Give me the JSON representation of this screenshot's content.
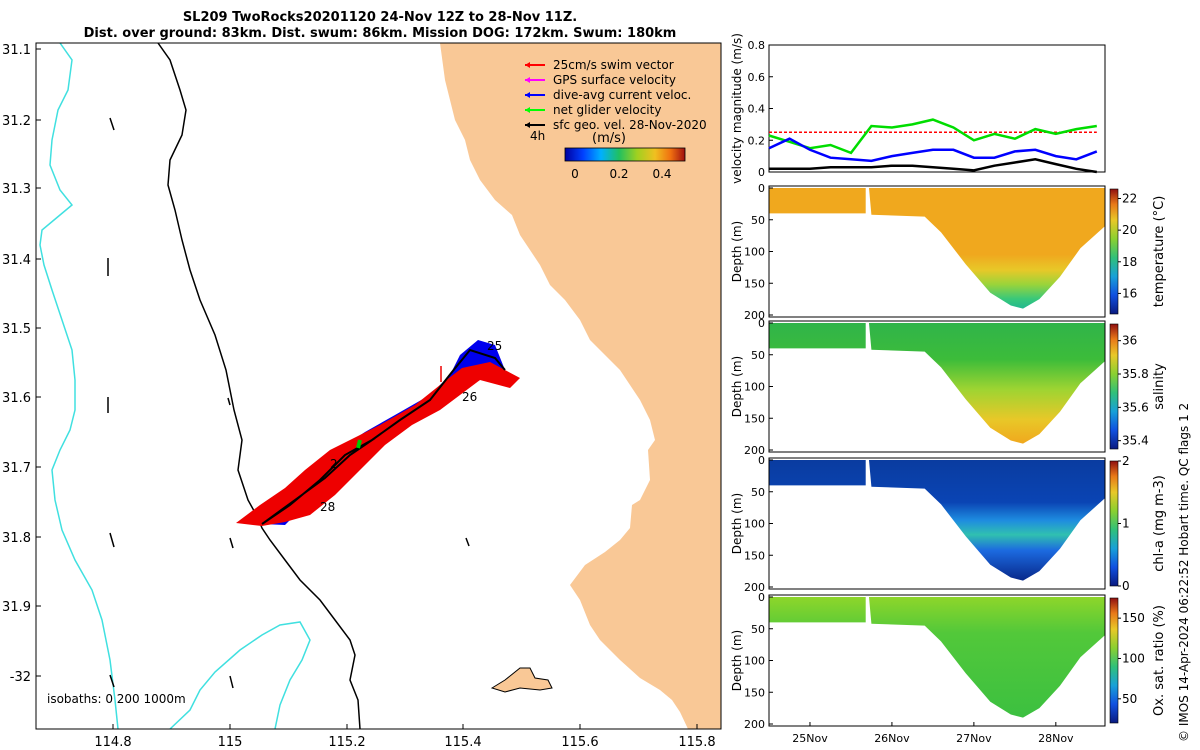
{
  "header": {
    "line1": "SL209 TwoRocks20201120 24-Nov 12Z to 28-Nov 11Z.",
    "line2": "Dist. over ground: 83km. Dist. swum: 86km. Mission DOG: 172km. Swum: 180km"
  },
  "credit": "© IMOS 14-Apr-2024 06:22:52 Hobart time. QC flags 1  2",
  "map": {
    "legend": [
      {
        "label": "25cm/s swim vector",
        "color": "#ff0000"
      },
      {
        "label": "GPS surface velocity",
        "color": "#ff00ff"
      },
      {
        "label": "dive-avg current veloc.",
        "color": "#0000ff"
      },
      {
        "label": "net glider velocity",
        "color": "#00ff00"
      },
      {
        "label": "sfc geo. vel. 28-Nov-2020",
        "color": "#000000"
      }
    ],
    "hours_label": "4h",
    "colorbar_unit": "(m/s)",
    "colorbar_ticks": [
      "0",
      "0.2",
      "0.4"
    ],
    "isobaths_label": "isobaths: 0   200  1000m",
    "day_labels": [
      "25",
      "26",
      "2",
      "28"
    ],
    "land_color": "#f9c896",
    "isobath_color": "#40e0e0"
  },
  "chart_data": [
    {
      "type": "map",
      "xlabel": "",
      "ylabel": "",
      "xlim": [
        114.67,
        115.83
      ],
      "ylim": [
        -32.08,
        -31.09
      ],
      "x_ticks": [
        "114.8",
        "115",
        "115.2",
        "115.4",
        "115.6",
        "115.8"
      ],
      "y_ticks": [
        "31.1",
        "31.2",
        "31.3",
        "31.4",
        "31.5",
        "31.6",
        "31.7",
        "31.8",
        "31.9",
        "-32"
      ],
      "glider_track": {
        "lon": [
          115.05,
          115.12,
          115.2,
          115.3,
          115.38,
          115.44,
          115.45,
          115.4,
          115.33,
          115.25,
          115.16,
          115.05
        ],
        "lat": [
          -31.78,
          -31.74,
          -31.69,
          -31.64,
          -31.6,
          -31.56,
          -31.55,
          -31.54,
          -31.6,
          -31.66,
          -31.72,
          -31.78
        ]
      }
    },
    {
      "type": "line",
      "ylabel": "velocity magnitude (m/s)",
      "ylim": [
        0,
        0.8
      ],
      "y_ticks": [
        "0",
        "0.2",
        "0.4",
        "0.6",
        "0.8"
      ],
      "x": [
        24.5,
        24.75,
        25.0,
        25.25,
        25.5,
        25.75,
        26.0,
        26.25,
        26.5,
        26.75,
        27.0,
        27.25,
        27.5,
        27.75,
        28.0,
        28.25,
        28.5
      ],
      "series": [
        {
          "color": "#ff0000",
          "values": [
            0.25,
            0.25,
            0.25,
            0.25,
            0.25,
            0.25,
            0.25,
            0.25,
            0.25,
            0.25,
            0.25,
            0.25,
            0.25,
            0.25,
            0.25,
            0.25,
            0.25
          ]
        },
        {
          "color": "#00dd00",
          "values": [
            0.23,
            0.19,
            0.15,
            0.17,
            0.12,
            0.29,
            0.28,
            0.3,
            0.33,
            0.28,
            0.2,
            0.24,
            0.21,
            0.27,
            0.24,
            0.27,
            0.29
          ]
        },
        {
          "color": "#0000ff",
          "values": [
            0.15,
            0.21,
            0.14,
            0.09,
            0.08,
            0.07,
            0.1,
            0.12,
            0.14,
            0.14,
            0.09,
            0.09,
            0.13,
            0.14,
            0.1,
            0.08,
            0.13
          ]
        },
        {
          "color": "#000000",
          "values": [
            0.02,
            0.02,
            0.02,
            0.03,
            0.03,
            0.03,
            0.04,
            0.04,
            0.03,
            0.02,
            0.01,
            0.04,
            0.06,
            0.08,
            0.05,
            0.02,
            0.0
          ]
        }
      ]
    },
    {
      "type": "heatmap",
      "ylabel": "Depth (m)",
      "clabel": "temperature (°C)",
      "clim": [
        14.7,
        22.6
      ],
      "c_ticks": [
        "16",
        "18",
        "20",
        "22"
      ],
      "profile": [
        [
          0.0,
          "#f0a81e"
        ],
        [
          0.55,
          "#f0a81e"
        ],
        [
          0.68,
          "#e8c828"
        ],
        [
          0.8,
          "#9ad43a"
        ],
        [
          0.92,
          "#38c87a"
        ],
        [
          1.0,
          "#22b890"
        ]
      ]
    },
    {
      "type": "heatmap",
      "ylabel": "Depth (m)",
      "clabel": "salinity",
      "clim": [
        35.35,
        36.1
      ],
      "c_ticks": [
        "35.4",
        "35.6",
        "35.8",
        "36"
      ],
      "profile": [
        [
          0.0,
          "#30b44a"
        ],
        [
          0.3,
          "#3cbc3a"
        ],
        [
          0.55,
          "#9ed432"
        ],
        [
          0.8,
          "#e8c828"
        ],
        [
          1.0,
          "#f0a81e"
        ]
      ]
    },
    {
      "type": "heatmap",
      "ylabel": "Depth (m)",
      "clabel": "chl-a (mg m-3)",
      "clim": [
        0,
        2
      ],
      "c_ticks": [
        "0",
        "1",
        "2"
      ],
      "profile": [
        [
          0.0,
          "#0a3ca0"
        ],
        [
          0.35,
          "#0a44b4"
        ],
        [
          0.5,
          "#1e8ce0"
        ],
        [
          0.62,
          "#30c0b0"
        ],
        [
          0.75,
          "#1c6ae0"
        ],
        [
          1.0,
          "#08288a"
        ]
      ]
    },
    {
      "type": "heatmap",
      "ylabel": "Depth (m)",
      "clabel": "Ox. sat. ratio (%)",
      "clim": [
        20,
        175
      ],
      "c_ticks": [
        "50",
        "100",
        "150"
      ],
      "profile": [
        [
          0.0,
          "#8ed62a"
        ],
        [
          0.3,
          "#52c83a"
        ],
        [
          1.0,
          "#3cc040"
        ]
      ]
    }
  ],
  "time_axis": {
    "ticks": [
      "25Nov",
      "26Nov",
      "27Nov",
      "28Nov"
    ],
    "depth_ticks": [
      "0",
      "50",
      "100",
      "150",
      "200"
    ]
  }
}
